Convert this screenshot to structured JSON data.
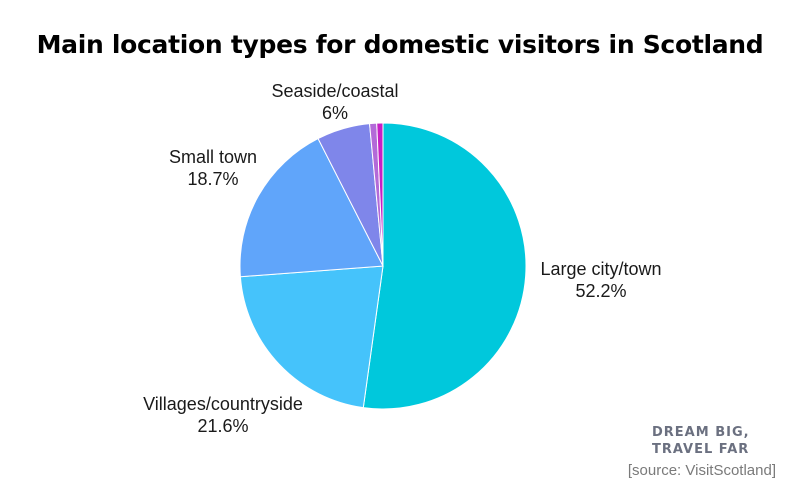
{
  "chart_data": {
    "type": "pie",
    "title": "Main location types for domestic visitors in Scotland",
    "slices": [
      {
        "label": "Large city/town",
        "value": 52.2,
        "display": "52.2%",
        "color": "#00c8dc"
      },
      {
        "label": "Villages/countryside",
        "value": 21.6,
        "display": "21.6%",
        "color": "#45c3fb"
      },
      {
        "label": "Small town",
        "value": 18.7,
        "display": "18.7%",
        "color": "#60a5fa"
      },
      {
        "label": "Seaside/coastal",
        "value": 6,
        "display": "6%",
        "color": "#7f86ea"
      },
      {
        "label": "",
        "value": 0.8,
        "display": "",
        "color": "#b36ad8"
      },
      {
        "label": "",
        "value": 0.7,
        "display": "",
        "color": "#c71fc5"
      }
    ],
    "start_angle_deg": 0,
    "direction": "clockwise"
  },
  "brand": {
    "line1": "DREAM BIG,",
    "line2": "TRAVEL FAR"
  },
  "source": "[source: VisitScotland]"
}
